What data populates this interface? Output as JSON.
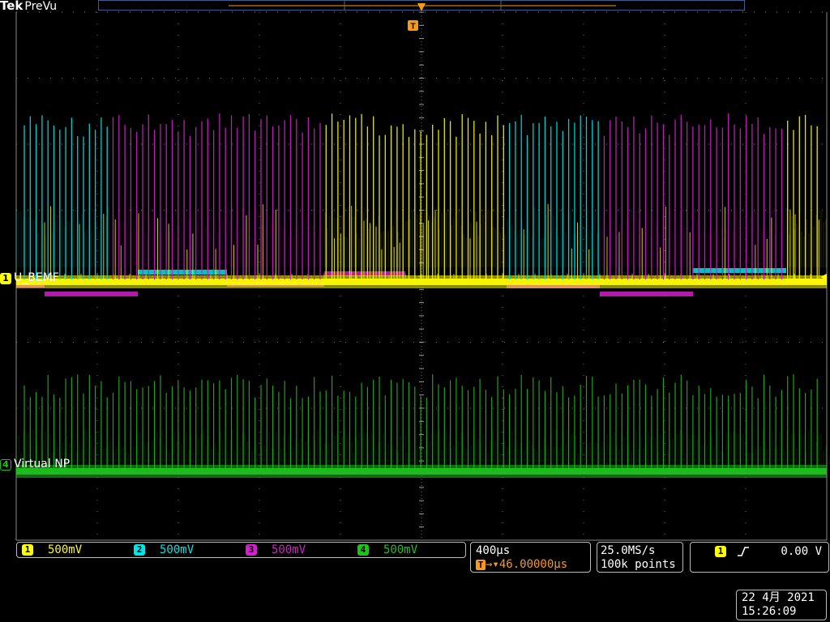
{
  "header": {
    "brand": "Tek",
    "mode": "PreVu"
  },
  "colors": {
    "ch1": "#ffff00",
    "ch2": "#00e5e5",
    "ch3": "#d020c8",
    "ch4": "#20c020",
    "trigger": "#f59a1d",
    "grid": "#9a9a9a",
    "recbar": "#3a5f8f"
  },
  "trigger_marker": "T",
  "channel_labels": [
    {
      "number": "1",
      "text": "U_BEMF"
    },
    {
      "number": "4",
      "text": "Virtual NP"
    }
  ],
  "scales": [
    {
      "number": "1",
      "value": "500mV"
    },
    {
      "number": "2",
      "value": "500mV"
    },
    {
      "number": "3",
      "value": "500mV"
    },
    {
      "number": "4",
      "value": "500mV"
    }
  ],
  "timebase": {
    "per_div": "400µs",
    "delay": "46.00000µs",
    "delay_prefix": "→▾"
  },
  "acquisition": {
    "sample_rate": "25.0MS/s",
    "record_length": "100k points"
  },
  "trigger": {
    "source": "1",
    "slope_icon": "rising-edge-icon",
    "level": "0.00 V"
  },
  "datetime": {
    "date": "22 4月  2021",
    "time": "15:26:09"
  }
}
